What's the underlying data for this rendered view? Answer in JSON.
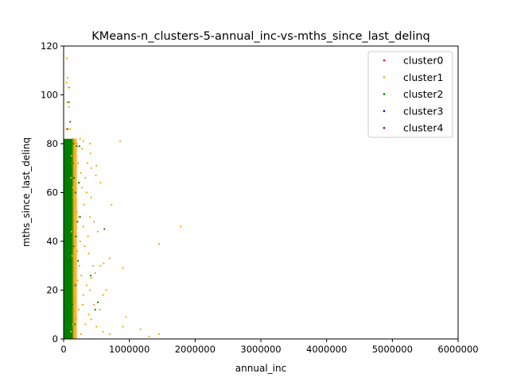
{
  "chart_data": {
    "type": "scatter",
    "title": "KMeans-n_clusters-5-annual_inc-vs-mths_since_last_delinq",
    "xlabel": "annual_inc",
    "ylabel": "mths_since_last_delinq",
    "xlim": [
      0,
      6000000
    ],
    "ylim": [
      0,
      120
    ],
    "x_ticks": [
      0,
      1000000,
      2000000,
      3000000,
      4000000,
      5000000,
      6000000
    ],
    "x_tick_labels": [
      "0",
      "1000000",
      "2000000",
      "3000000",
      "4000000",
      "5000000",
      "6000000"
    ],
    "y_ticks": [
      0,
      20,
      40,
      60,
      80,
      100,
      120
    ],
    "y_tick_labels": [
      "0",
      "20",
      "40",
      "60",
      "80",
      "100",
      "120"
    ],
    "grid": false,
    "legend_position": "top-right",
    "series": [
      {
        "name": "cluster0",
        "color": "#ff0000",
        "points": []
      },
      {
        "name": "cluster1",
        "color": "#ffa500",
        "points": [
          [
            50000,
            115
          ],
          [
            60000,
            107
          ],
          [
            45000,
            105
          ],
          [
            70000,
            103
          ],
          [
            90000,
            103
          ],
          [
            55000,
            97
          ],
          [
            80000,
            95
          ],
          [
            40000,
            86
          ],
          [
            100000,
            86
          ],
          [
            150000,
            82
          ],
          [
            200000,
            80
          ],
          [
            250000,
            82
          ],
          [
            300000,
            81
          ],
          [
            400000,
            80
          ],
          [
            860000,
            81
          ],
          [
            120000,
            75
          ],
          [
            180000,
            70
          ],
          [
            220000,
            72
          ],
          [
            260000,
            68
          ],
          [
            330000,
            66
          ],
          [
            420000,
            70
          ],
          [
            500000,
            71
          ],
          [
            560000,
            64
          ],
          [
            490000,
            67
          ],
          [
            350000,
            60
          ],
          [
            420000,
            58
          ],
          [
            280000,
            62
          ],
          [
            240000,
            64
          ],
          [
            310000,
            55
          ],
          [
            730000,
            55
          ],
          [
            150000,
            58
          ],
          [
            200000,
            52
          ],
          [
            400000,
            50
          ],
          [
            460000,
            48
          ],
          [
            520000,
            44
          ],
          [
            370000,
            42
          ],
          [
            300000,
            46
          ],
          [
            250000,
            40
          ],
          [
            1780000,
            46
          ],
          [
            1450000,
            39
          ],
          [
            320000,
            38
          ],
          [
            380000,
            35
          ],
          [
            450000,
            30
          ],
          [
            560000,
            30
          ],
          [
            610000,
            31
          ],
          [
            700000,
            33
          ],
          [
            900000,
            29
          ],
          [
            480000,
            27
          ],
          [
            420000,
            25
          ],
          [
            350000,
            22
          ],
          [
            400000,
            20
          ],
          [
            300000,
            18
          ],
          [
            460000,
            14
          ],
          [
            520000,
            15
          ],
          [
            600000,
            18
          ],
          [
            650000,
            20
          ],
          [
            550000,
            12
          ],
          [
            380000,
            10
          ],
          [
            420000,
            8
          ],
          [
            500000,
            5
          ],
          [
            600000,
            3
          ],
          [
            700000,
            2
          ],
          [
            900000,
            5
          ],
          [
            950000,
            9
          ],
          [
            1170000,
            4
          ],
          [
            1450000,
            2
          ],
          [
            1300000,
            1
          ],
          [
            130000,
            34
          ],
          [
            160000,
            28
          ],
          [
            210000,
            24
          ],
          [
            170000,
            16
          ],
          [
            230000,
            12
          ],
          [
            190000,
            8
          ],
          [
            140000,
            6
          ],
          [
            110000,
            3
          ],
          [
            260000,
            2
          ],
          [
            120000,
            44
          ],
          [
            160000,
            48
          ],
          [
            210000,
            36
          ],
          [
            140000,
            62
          ],
          [
            110000,
            66
          ],
          [
            170000,
            76
          ],
          [
            130000,
            72
          ],
          [
            190000,
            56
          ],
          [
            240000,
            30
          ],
          [
            270000,
            26
          ],
          [
            290000,
            14
          ],
          [
            330000,
            6
          ],
          [
            360000,
            72
          ],
          [
            410000,
            76
          ],
          [
            280000,
            78
          ],
          [
            230000,
            50
          ]
        ]
      },
      {
        "name": "cluster2",
        "color": "#008000",
        "points": [
          [
            80000,
            97
          ],
          [
            100000,
            89
          ],
          [
            60000,
            86
          ],
          [
            150000,
            80
          ],
          [
            200000,
            79
          ],
          [
            240000,
            79
          ],
          [
            180000,
            60
          ],
          [
            620000,
            45
          ],
          [
            410000,
            26
          ],
          [
            520000,
            15
          ],
          [
            480000,
            12
          ],
          [
            150000,
            38
          ],
          [
            180000,
            22
          ],
          [
            210000,
            48
          ],
          [
            160000,
            66
          ],
          [
            130000,
            14
          ],
          [
            250000,
            50
          ],
          [
            220000,
            32
          ],
          [
            170000,
            6
          ],
          [
            140000,
            72
          ],
          [
            230000,
            64
          ],
          [
            190000,
            42
          ]
        ]
      },
      {
        "name": "cluster3",
        "color": "#0000ff",
        "points": []
      },
      {
        "name": "cluster4",
        "color": "#800080",
        "points": []
      }
    ]
  }
}
